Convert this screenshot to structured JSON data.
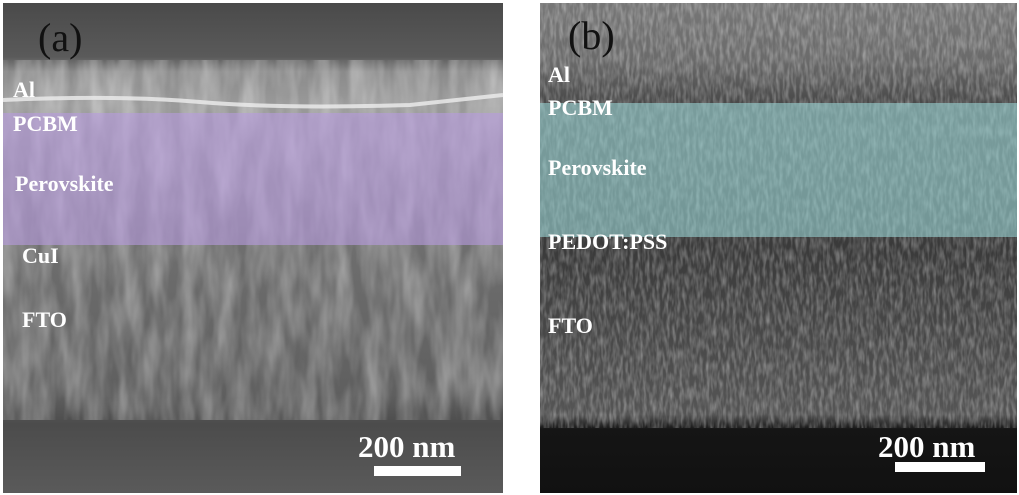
{
  "panels": [
    {
      "label": "(a)",
      "layers": [
        "Al",
        "PCBM",
        "Perovskite",
        "CuI",
        "FTO"
      ],
      "scale_bar": "200 nm"
    },
    {
      "label": "(b)",
      "layers": [
        "Al",
        "PCBM",
        "Perovskite",
        "PEDOT:PSS",
        "FTO"
      ],
      "scale_bar": "200 nm"
    }
  ]
}
